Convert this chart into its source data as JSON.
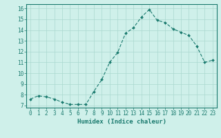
{
  "x": [
    0,
    1,
    2,
    3,
    4,
    5,
    6,
    7,
    8,
    9,
    10,
    11,
    12,
    13,
    14,
    15,
    16,
    17,
    18,
    19,
    20,
    21,
    22,
    23
  ],
  "y": [
    7.6,
    7.9,
    7.8,
    7.6,
    7.3,
    7.1,
    7.1,
    7.1,
    8.3,
    9.4,
    11.0,
    11.9,
    13.7,
    14.2,
    15.2,
    15.9,
    14.9,
    14.7,
    14.1,
    13.8,
    13.5,
    12.5,
    11.0,
    11.2
  ],
  "line_color": "#1a7a6e",
  "marker": "D",
  "marker_size": 2.0,
  "bg_color": "#cff0ea",
  "grid_color": "#aad8cf",
  "xlabel": "Humidex (Indice chaleur)",
  "xlim": [
    -0.5,
    23.5
  ],
  "ylim": [
    6.8,
    16.4
  ],
  "yticks": [
    7,
    8,
    9,
    10,
    11,
    12,
    13,
    14,
    15,
    16
  ],
  "xticks": [
    0,
    1,
    2,
    3,
    4,
    5,
    6,
    7,
    8,
    9,
    10,
    11,
    12,
    13,
    14,
    15,
    16,
    17,
    18,
    19,
    20,
    21,
    22,
    23
  ],
  "tick_color": "#1a7a6e",
  "label_color": "#1a7a6e",
  "spine_color": "#1a7a6e",
  "font_size_tick": 5.5,
  "font_size_label": 6.5,
  "linewidth": 0.8
}
